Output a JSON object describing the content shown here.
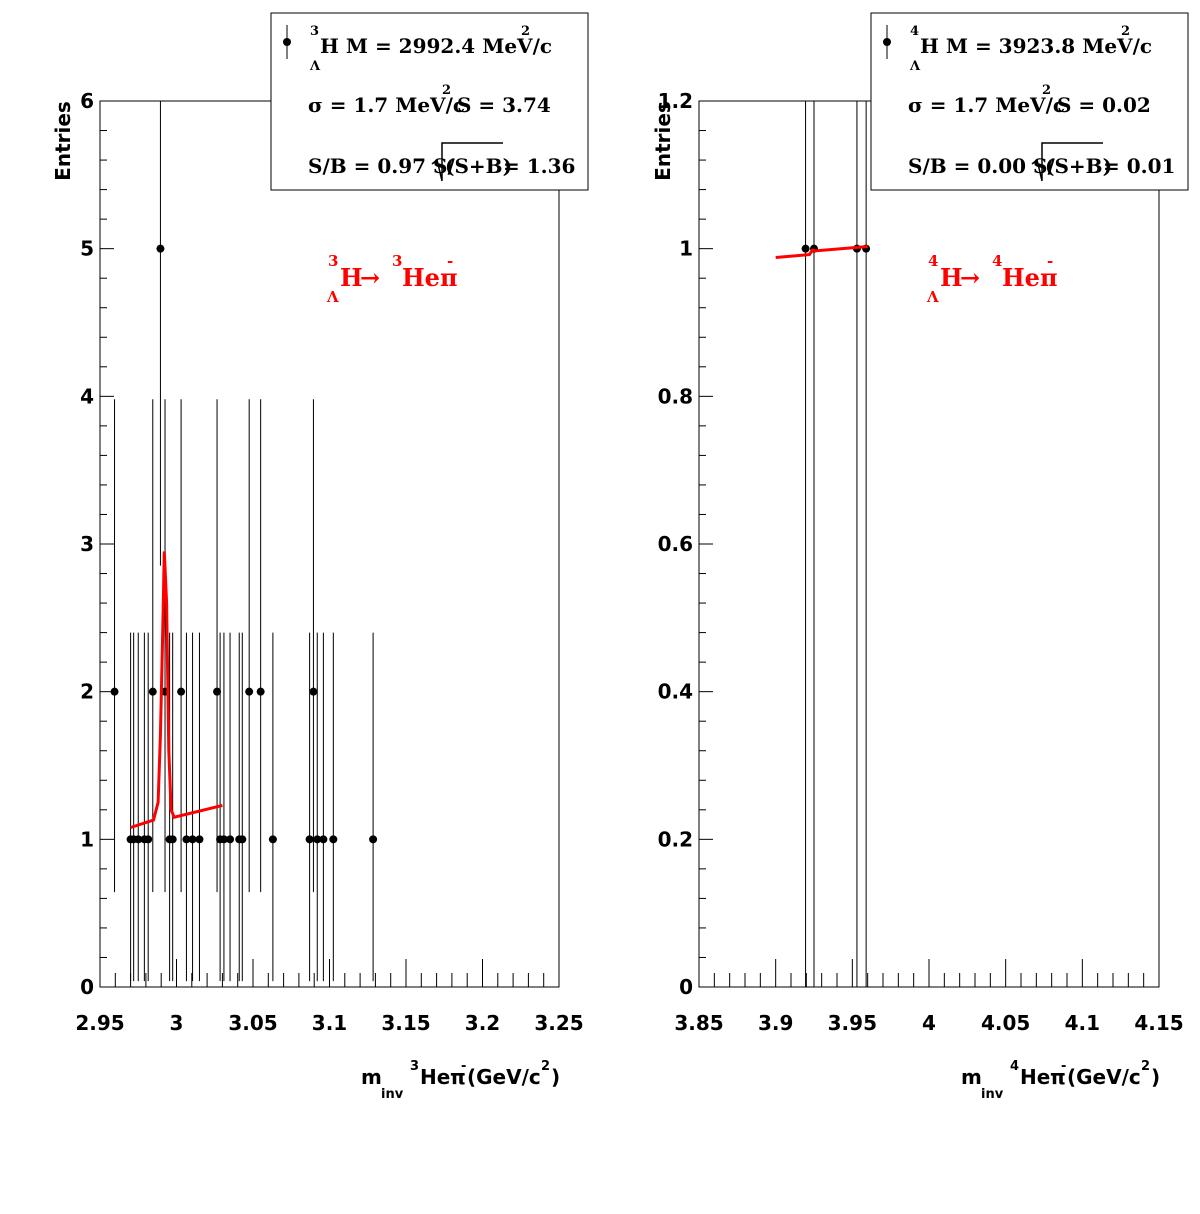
{
  "chart_data": [
    {
      "type": "scatter",
      "ylabel": "Entries",
      "xlim": [
        2.95,
        3.25
      ],
      "ylim": [
        0,
        6
      ],
      "x_ticks": [
        "2.95",
        "3",
        "3.05",
        "3.1",
        "3.15",
        "3.2",
        "3.25"
      ],
      "y_ticks": [
        "0",
        "1",
        "2",
        "3",
        "4",
        "5",
        "6"
      ],
      "xtitle": {
        "m": "m",
        "inv": "inv",
        "mass": "3",
        "he": "He",
        "pi": "π",
        "minus": "-",
        "units": "(GeV/c",
        "two": "2",
        "close": ")"
      },
      "legend": {
        "line1": {
          "a": "3",
          "lambda": "Λ",
          "text": "H M = 2992.4 MeV/c",
          "sup": "2"
        },
        "line2": {
          "text1": "σ = 1.7 MeV/c",
          "sup": "2",
          "text2": "S = 3.74"
        },
        "line3": {
          "text1": "S/B = 0.97  S/",
          "text2": "(S+B)",
          "text3": " = 1.36"
        }
      },
      "decay_label": {
        "a1": "3",
        "lambda": "Λ",
        "h": "H",
        "arrow": "→",
        "a2": "3",
        "he": "Heπ",
        "minus": "-"
      },
      "points": [
        {
          "x": 2.9595,
          "y": 2
        },
        {
          "x": 2.97,
          "y": 1
        },
        {
          "x": 2.972,
          "y": 1
        },
        {
          "x": 2.975,
          "y": 1
        },
        {
          "x": 2.979,
          "y": 1
        },
        {
          "x": 2.9815,
          "y": 1
        },
        {
          "x": 2.9845,
          "y": 2
        },
        {
          "x": 2.9895,
          "y": 5
        },
        {
          "x": 2.9925,
          "y": 2
        },
        {
          "x": 2.9955,
          "y": 1
        },
        {
          "x": 2.9975,
          "y": 1
        },
        {
          "x": 3.003,
          "y": 2
        },
        {
          "x": 3.0065,
          "y": 1
        },
        {
          "x": 3.0105,
          "y": 1
        },
        {
          "x": 3.015,
          "y": 1
        },
        {
          "x": 3.0265,
          "y": 2
        },
        {
          "x": 3.0285,
          "y": 1
        },
        {
          "x": 3.031,
          "y": 1
        },
        {
          "x": 3.035,
          "y": 1
        },
        {
          "x": 3.041,
          "y": 1
        },
        {
          "x": 3.043,
          "y": 1
        },
        {
          "x": 3.0475,
          "y": 2
        },
        {
          "x": 3.055,
          "y": 2
        },
        {
          "x": 3.063,
          "y": 1
        },
        {
          "x": 3.087,
          "y": 1
        },
        {
          "x": 3.0895,
          "y": 2
        },
        {
          "x": 3.092,
          "y": 1
        },
        {
          "x": 3.096,
          "y": 1
        },
        {
          "x": 3.1025,
          "y": 1
        },
        {
          "x": 3.1285,
          "y": 1
        }
      ],
      "fit": [
        {
          "x": 2.97,
          "y": 1.08
        },
        {
          "x": 2.985,
          "y": 1.13
        },
        {
          "x": 2.988,
          "y": 1.25
        },
        {
          "x": 2.9895,
          "y": 1.7
        },
        {
          "x": 2.991,
          "y": 2.4
        },
        {
          "x": 2.992,
          "y": 2.95
        },
        {
          "x": 2.9935,
          "y": 2.6
        },
        {
          "x": 2.995,
          "y": 1.6
        },
        {
          "x": 2.9965,
          "y": 1.2
        },
        {
          "x": 2.9985,
          "y": 1.15
        },
        {
          "x": 3.03,
          "y": 1.23
        }
      ],
      "colors": {
        "fit": "#ff0000",
        "points": "#000000"
      }
    },
    {
      "type": "scatter",
      "ylabel": "Entries",
      "xlim": [
        3.85,
        4.15
      ],
      "ylim": [
        0,
        1.2
      ],
      "x_ticks": [
        "3.85",
        "3.9",
        "3.95",
        "4",
        "4.05",
        "4.1",
        "4.15"
      ],
      "y_ticks": [
        "0",
        "0.2",
        "0.4",
        "0.6",
        "0.8",
        "1",
        "1.2"
      ],
      "xtitle": {
        "m": "m",
        "inv": "inv",
        "mass": "4",
        "he": "He",
        "pi": "π",
        "minus": "-",
        "units": " (GeV/c",
        "two": "2",
        "close": ")"
      },
      "legend": {
        "line1": {
          "a": "4",
          "lambda": "Λ",
          "text": "H M = 3923.8 MeV/c",
          "sup": "2"
        },
        "line2": {
          "text1": "σ = 1.7 MeV/c",
          "sup": "2",
          "text2": "S = 0.02"
        },
        "line3": {
          "text1": "S/B = 0.00  S/",
          "text2": "(S+B)",
          "text3": " = 0.01"
        }
      },
      "decay_label": {
        "a1": "4",
        "lambda": "Λ",
        "h": "H",
        "arrow": "→",
        "a2": "4",
        "he": "Heπ",
        "minus": "-"
      },
      "points": [
        {
          "x": 3.9195,
          "y": 1
        },
        {
          "x": 3.925,
          "y": 1
        },
        {
          "x": 3.953,
          "y": 1
        },
        {
          "x": 3.959,
          "y": 1
        }
      ],
      "fit": [
        {
          "x": 3.9,
          "y": 0.988
        },
        {
          "x": 3.922,
          "y": 0.992
        },
        {
          "x": 3.924,
          "y": 0.998
        },
        {
          "x": 3.926,
          "y": 0.997
        },
        {
          "x": 3.96,
          "y": 1.003
        }
      ],
      "colors": {
        "fit": "#ff0000",
        "points": "#000000"
      }
    }
  ]
}
